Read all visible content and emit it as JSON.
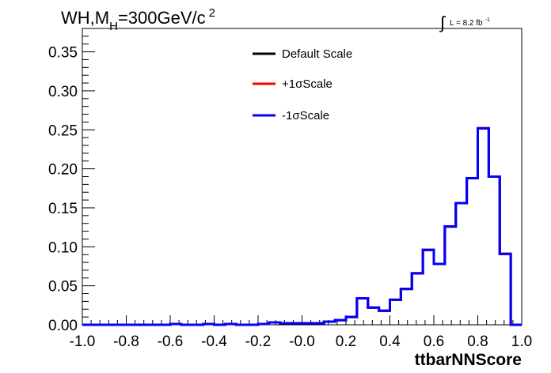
{
  "chart_data": {
    "type": "line",
    "title_main": "WH,M",
    "title_sub": "H",
    "title_rest": "=300GeV/c",
    "title_sup": "2",
    "lumi_symbol": "∫",
    "lumi_text": "L = 8.2 fb",
    "lumi_sup": "-1",
    "xlabel": "ttbarNNScore",
    "ylabel": "",
    "xlim": [
      -1.0,
      1.0
    ],
    "ylim": [
      0.0,
      0.38
    ],
    "x_ticks": [
      -1.0,
      -0.8,
      -0.6,
      -0.4,
      -0.2,
      0.0,
      0.2,
      0.4,
      0.6,
      0.8,
      1.0
    ],
    "x_tick_labels": [
      "-1.0",
      "-0.8",
      "-0.6",
      "-0.4",
      "-0.2",
      "-0.0",
      "0.2",
      "0.4",
      "0.6",
      "0.8",
      "1.0"
    ],
    "y_ticks": [
      0.0,
      0.05,
      0.1,
      0.15,
      0.2,
      0.25,
      0.3,
      0.35
    ],
    "y_tick_labels": [
      "0.00",
      "0.05",
      "0.10",
      "0.15",
      "0.20",
      "0.25",
      "0.30",
      "0.35"
    ],
    "bin_edges": [
      -1.0,
      -0.95,
      -0.9,
      -0.85,
      -0.8,
      -0.75,
      -0.7,
      -0.65,
      -0.6,
      -0.55,
      -0.5,
      -0.45,
      -0.4,
      -0.35,
      -0.3,
      -0.25,
      -0.2,
      -0.15,
      -0.1,
      -0.05,
      0.0,
      0.05,
      0.1,
      0.15,
      0.2,
      0.25,
      0.3,
      0.35,
      0.4,
      0.45,
      0.5,
      0.55,
      0.6,
      0.65,
      0.7,
      0.75,
      0.8,
      0.85,
      0.9,
      0.95,
      1.0
    ],
    "series": [
      {
        "name": "Default Scale",
        "color": "#000000",
        "values": [
          0.0,
          0.0,
          0.0,
          0.0,
          0.0,
          0.0,
          0.0,
          0.0,
          0.001,
          0.0,
          0.0,
          0.001,
          0.0,
          0.001,
          0.0,
          0.0,
          0.001,
          0.003,
          0.002,
          0.002,
          0.002,
          0.002,
          0.004,
          0.006,
          0.01,
          0.034,
          0.022,
          0.018,
          0.032,
          0.046,
          0.066,
          0.096,
          0.078,
          0.126,
          0.156,
          0.188,
          0.252,
          0.19,
          0.091,
          0.0
        ]
      },
      {
        "name": "+1σScale",
        "color": "#ff0000",
        "values": [
          0.0,
          0.0,
          0.0,
          0.0,
          0.0,
          0.0,
          0.0,
          0.0,
          0.001,
          0.0,
          0.0,
          0.001,
          0.0,
          0.001,
          0.0,
          0.0,
          0.001,
          0.003,
          0.002,
          0.002,
          0.002,
          0.002,
          0.004,
          0.006,
          0.01,
          0.034,
          0.022,
          0.018,
          0.032,
          0.046,
          0.066,
          0.096,
          0.078,
          0.126,
          0.156,
          0.188,
          0.252,
          0.19,
          0.091,
          0.0
        ]
      },
      {
        "name": "-1σScale",
        "color": "#0000ff",
        "values": [
          0.0,
          0.0,
          0.0,
          0.0,
          0.0,
          0.0,
          0.0,
          0.0,
          0.001,
          0.0,
          0.0,
          0.001,
          0.0,
          0.001,
          0.0,
          0.0,
          0.001,
          0.003,
          0.002,
          0.002,
          0.002,
          0.002,
          0.004,
          0.006,
          0.01,
          0.034,
          0.022,
          0.018,
          0.032,
          0.046,
          0.066,
          0.096,
          0.078,
          0.126,
          0.156,
          0.188,
          0.252,
          0.19,
          0.091,
          0.0
        ]
      }
    ],
    "legend_position": "top-center",
    "grid": false
  }
}
